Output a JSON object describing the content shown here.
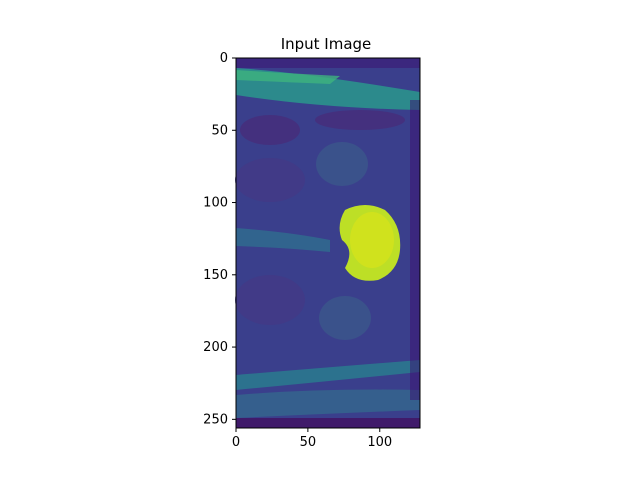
{
  "chart_data": {
    "type": "heatmap",
    "title": "Input Image",
    "xlabel": "",
    "ylabel": "",
    "colormap": "viridis",
    "image_shape": [
      256,
      128
    ],
    "xlim": [
      0,
      128
    ],
    "ylim": [
      256,
      0
    ],
    "x_ticks": [
      0,
      50,
      100
    ],
    "y_ticks": [
      0,
      50,
      100,
      150,
      200,
      250
    ],
    "grid": false,
    "legend": "none",
    "features": [
      {
        "name": "subcutaneous fat band",
        "rows": [
          8,
          25
        ],
        "intensity": 0.45
      },
      {
        "name": "bright focal structure",
        "center": [
          88,
          122
        ],
        "radius": [
          20,
          25
        ],
        "intensity": 0.92
      },
      {
        "name": "femoral head left",
        "center": [
          75,
          75
        ],
        "intensity": 0.3
      },
      {
        "name": "femoral head right",
        "center": [
          75,
          175
        ],
        "intensity": 0.3
      },
      {
        "name": "lower soft tissue band",
        "rows": [
          232,
          250
        ],
        "intensity": 0.35
      }
    ]
  }
}
